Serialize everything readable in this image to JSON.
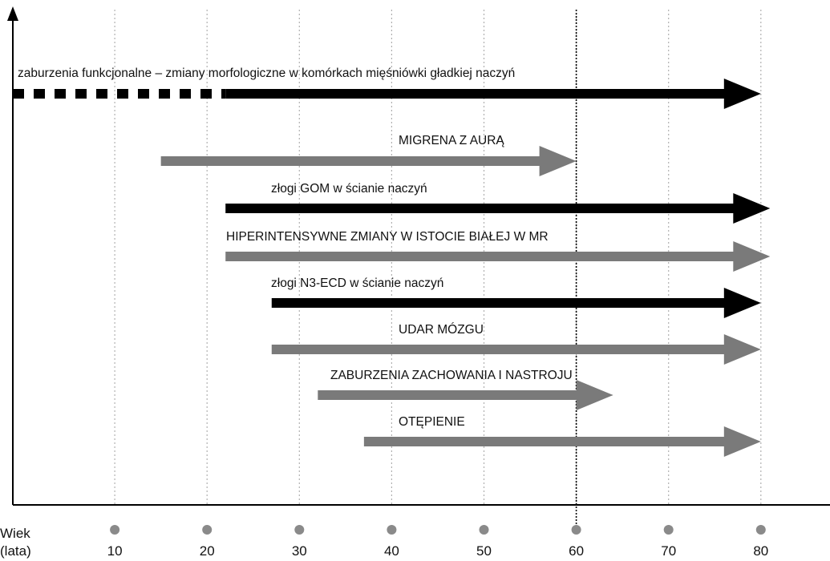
{
  "chart_data": {
    "type": "timeline",
    "x_axis": {
      "label_line1": "Wiek",
      "label_line2": "(lata)",
      "ticks": [
        10,
        20,
        30,
        40,
        50,
        60,
        70,
        80
      ],
      "range": [
        0,
        87
      ]
    },
    "reference_line": {
      "x": 60
    },
    "grid": true,
    "colors": {
      "black": "#000000",
      "gray": "#7a7a7a",
      "grid": "#b0b0b0",
      "dot": "#8a8a8a"
    },
    "bars": [
      {
        "label": "zaburzenia funkcjonalne – zmiany morfologiczne w komórkach mięśniówki gładkiej naczyń",
        "dashed_start": 0,
        "start": 22,
        "end": 80,
        "color": "black"
      },
      {
        "label": "MIGRENA Z AURĄ",
        "start": 15,
        "end": 60,
        "color": "gray"
      },
      {
        "label": "złogi GOM w ścianie naczyń",
        "start": 22,
        "end": 81,
        "color": "black"
      },
      {
        "label": "HIPERINTENSYWNE ZMIANY W ISTOCIE BIAŁEJ W MR",
        "start": 22,
        "end": 81,
        "color": "gray"
      },
      {
        "label": "złogi N3-ECD w ścianie naczyń",
        "start": 27,
        "end": 80,
        "color": "black"
      },
      {
        "label": "UDAR MÓZGU",
        "start": 27,
        "end": 80,
        "color": "gray"
      },
      {
        "label": "ZABURZENIA ZACHOWANIA I NASTROJU",
        "start": 32,
        "end": 64,
        "color": "gray"
      },
      {
        "label": "OTĘPIENIE",
        "start": 37,
        "end": 80,
        "color": "gray"
      }
    ]
  }
}
